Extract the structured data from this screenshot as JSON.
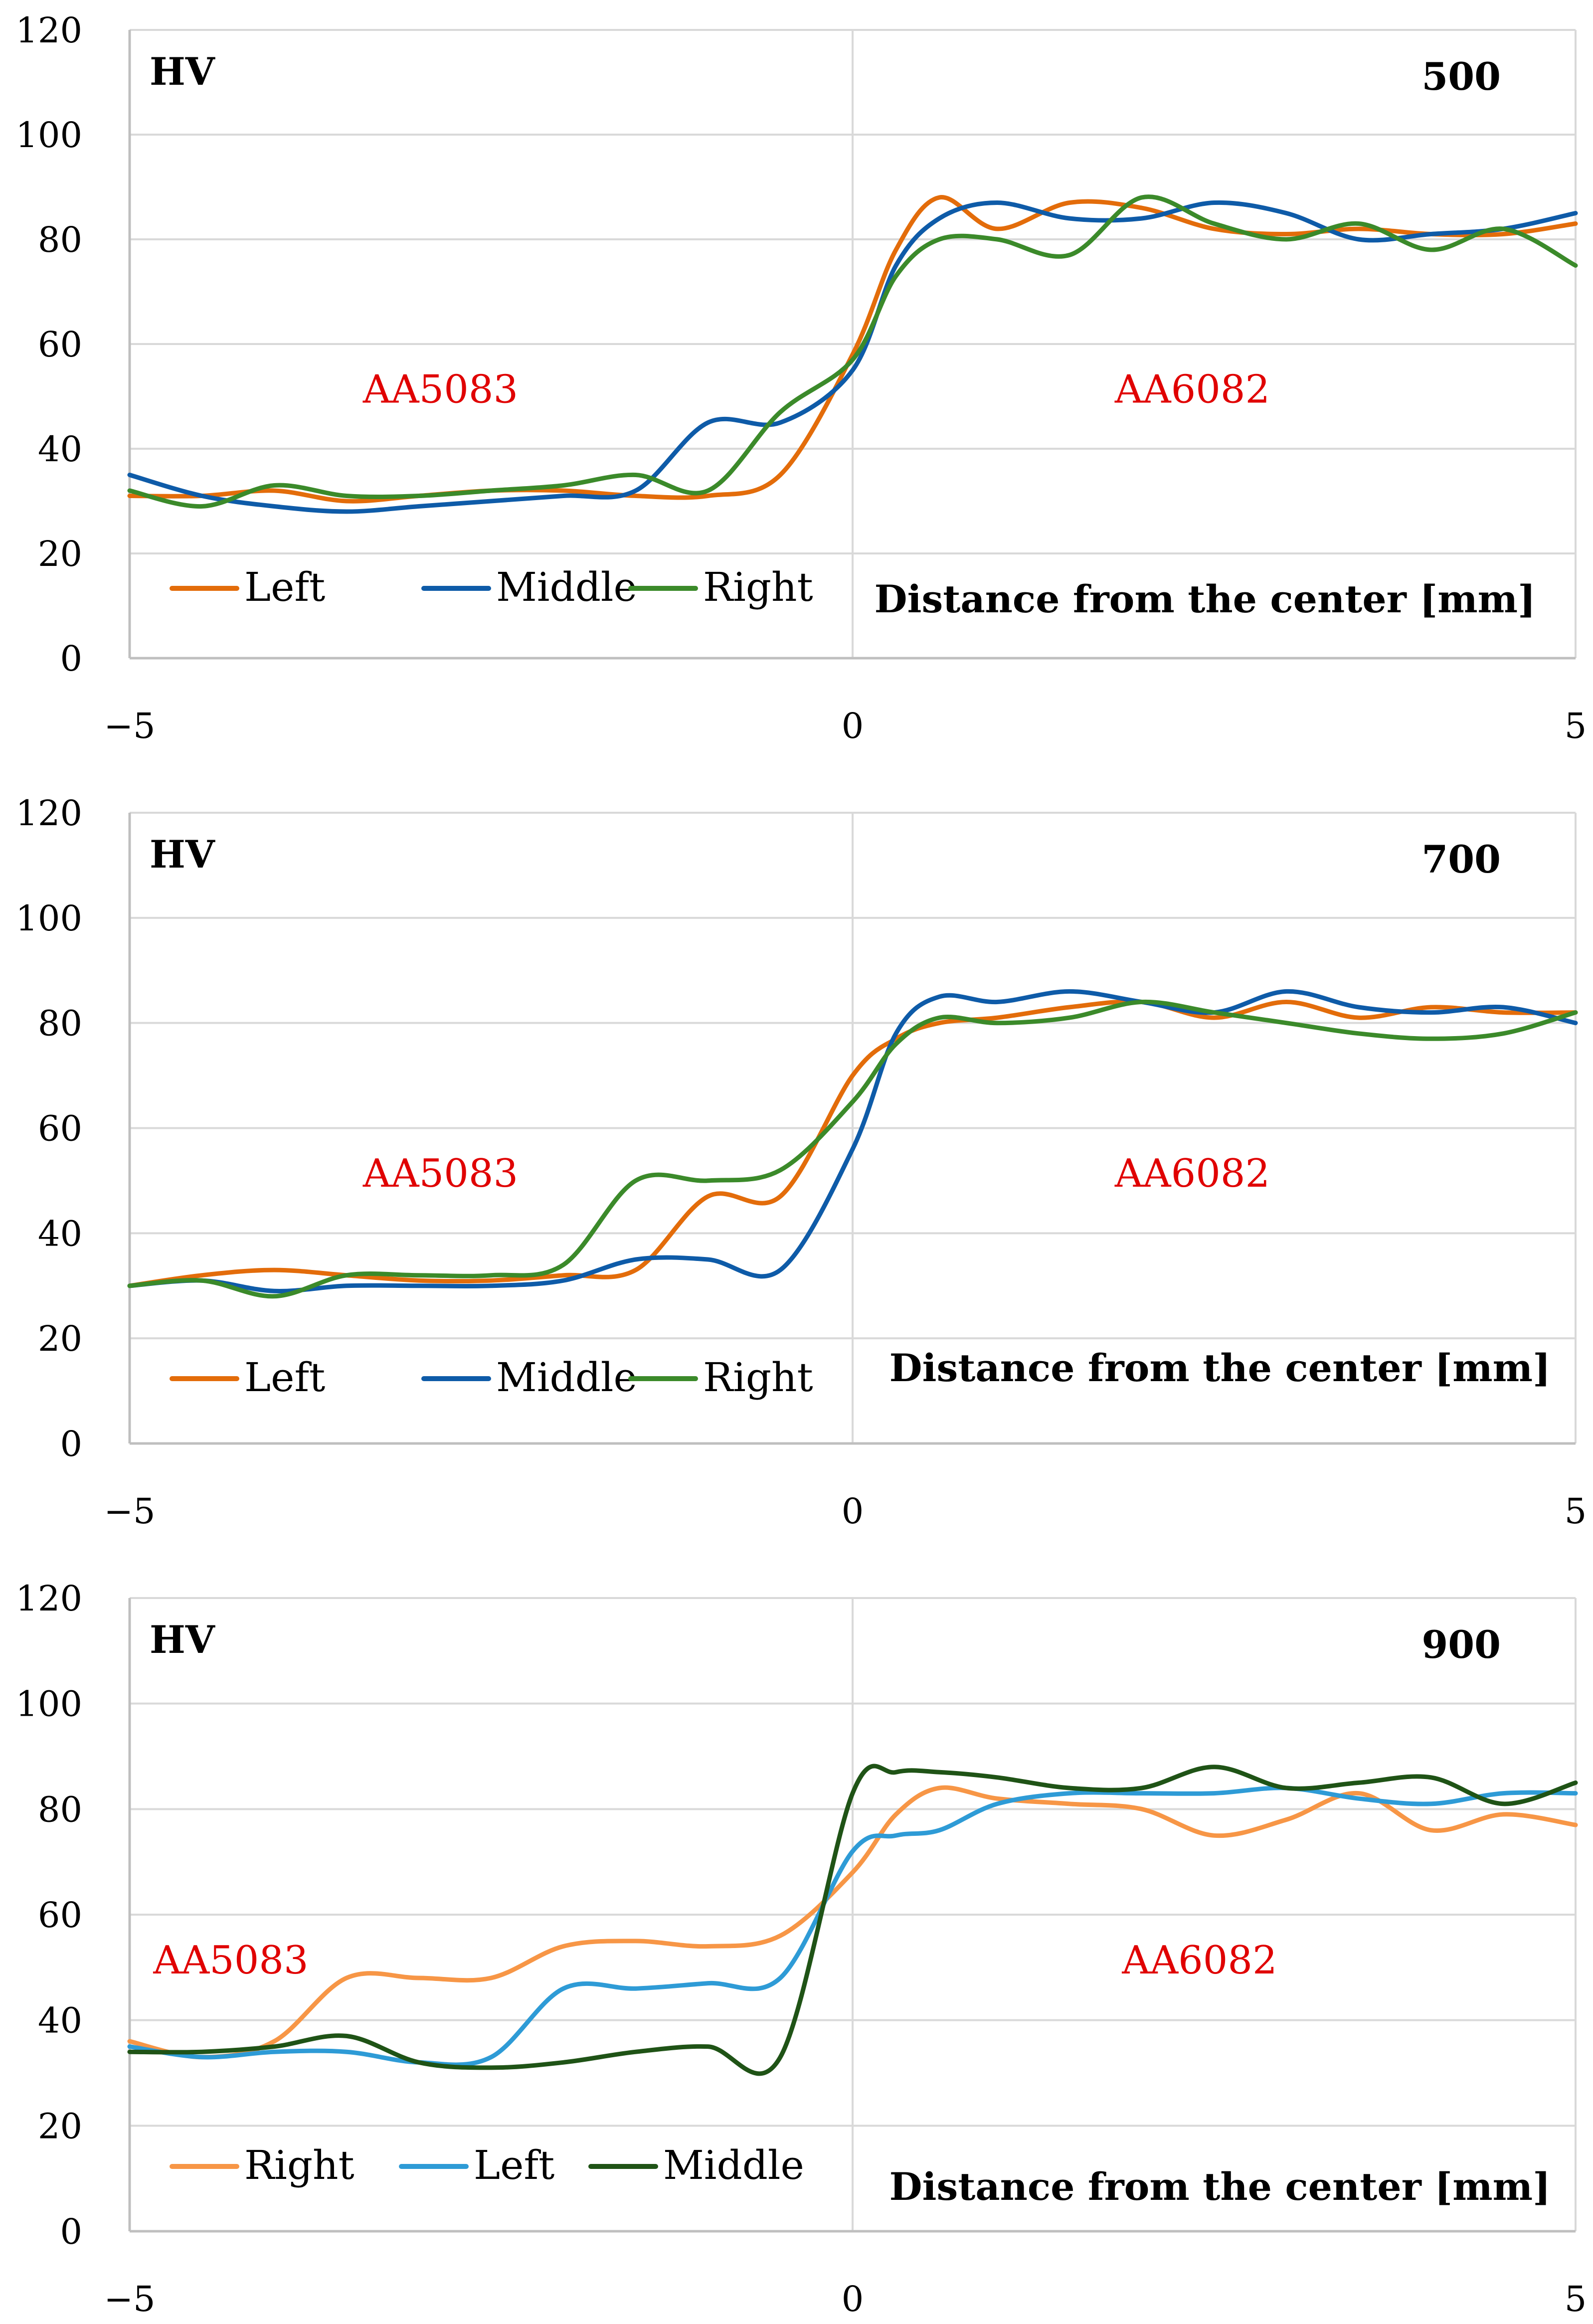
{
  "chart_data": [
    {
      "type": "line",
      "ylabel": "HV",
      "xlabel": "Distance from the center [mm]",
      "corner_value": "500",
      "xlim": [
        -5,
        5
      ],
      "ylim": [
        0,
        120
      ],
      "xticks": [
        "−5",
        "0",
        "5"
      ],
      "yticks": [
        "0",
        "20",
        "40",
        "60",
        "80",
        "100",
        "120"
      ],
      "grid": true,
      "legend_position": "bottom-left",
      "region_labels": [
        {
          "text": "AA5083",
          "x": -2.85,
          "y": 51.5
        },
        {
          "text": "AA6082",
          "x": 2.35,
          "y": 51.5
        }
      ],
      "series": [
        {
          "name": "Left",
          "color": "#e36c0a",
          "x": [
            -5,
            -4.5,
            -4,
            -3.5,
            -3,
            -2.5,
            -2,
            -1.5,
            -1,
            -0.5,
            0,
            0.3,
            0.6,
            1,
            1.5,
            2,
            2.5,
            3,
            3.5,
            4,
            4.5,
            5
          ],
          "values": [
            31,
            31,
            32,
            30,
            31,
            32,
            32,
            31,
            31,
            35,
            58,
            78,
            88,
            82,
            87,
            86,
            82,
            81,
            82,
            81,
            81,
            83
          ]
        },
        {
          "name": "Middle",
          "color": "#0e5ba8",
          "x": [
            -5,
            -4.5,
            -4,
            -3.5,
            -3,
            -2.5,
            -2,
            -1.5,
            -1,
            -0.5,
            0,
            0.3,
            0.6,
            1,
            1.5,
            2,
            2.5,
            3,
            3.5,
            4,
            4.5,
            5
          ],
          "values": [
            35,
            31,
            29,
            28,
            29,
            30,
            31,
            32,
            45,
            45,
            55,
            75,
            84,
            87,
            84,
            84,
            87,
            85,
            80,
            81,
            82,
            85
          ]
        },
        {
          "name": "Right",
          "color": "#3b8a2a",
          "x": [
            -5,
            -4.5,
            -4,
            -3.5,
            -3,
            -2.5,
            -2,
            -1.5,
            -1,
            -0.5,
            0,
            0.3,
            0.6,
            1,
            1.5,
            2,
            2.5,
            3,
            3.5,
            4,
            4.5,
            5
          ],
          "values": [
            32,
            29,
            33,
            31,
            31,
            32,
            33,
            35,
            32,
            47,
            57,
            73,
            80,
            80,
            77,
            88,
            83,
            80,
            83,
            78,
            82,
            75
          ]
        }
      ]
    },
    {
      "type": "line",
      "ylabel": "HV",
      "xlabel": "Distance from the center [mm]",
      "corner_value": "700",
      "xlim": [
        -5,
        5
      ],
      "ylim": [
        0,
        120
      ],
      "xticks": [
        "−5",
        "0",
        "5"
      ],
      "yticks": [
        "0",
        "20",
        "40",
        "60",
        "80",
        "100",
        "120"
      ],
      "grid": true,
      "legend_position": "bottom-left",
      "region_labels": [
        {
          "text": "AA5083",
          "x": -2.85,
          "y": 51.5
        },
        {
          "text": "AA6082",
          "x": 2.35,
          "y": 51.5
        }
      ],
      "series": [
        {
          "name": "Left",
          "color": "#e36c0a",
          "x": [
            -5,
            -4.5,
            -4,
            -3.5,
            -3,
            -2.5,
            -2,
            -1.5,
            -1,
            -0.5,
            0,
            0.3,
            0.6,
            1,
            1.5,
            2,
            2.5,
            3,
            3.5,
            4,
            4.5,
            5
          ],
          "values": [
            30,
            32,
            33,
            32,
            31,
            31,
            32,
            33,
            47,
            47,
            70,
            77,
            80,
            81,
            83,
            84,
            81,
            84,
            81,
            83,
            82,
            82
          ]
        },
        {
          "name": "Middle",
          "color": "#0e5ba8",
          "x": [
            -5,
            -4.5,
            -4,
            -3.5,
            -3,
            -2.5,
            -2,
            -1.5,
            -1,
            -0.5,
            0,
            0.3,
            0.6,
            1,
            1.5,
            2,
            2.5,
            3,
            3.5,
            4,
            4.5,
            5
          ],
          "values": [
            30,
            31,
            29,
            30,
            30,
            30,
            31,
            35,
            35,
            33,
            56,
            78,
            85,
            84,
            86,
            84,
            82,
            86,
            83,
            82,
            83,
            80
          ]
        },
        {
          "name": "Right",
          "color": "#3b8a2a",
          "x": [
            -5,
            -4.5,
            -4,
            -3.5,
            -3,
            -2.5,
            -2,
            -1.5,
            -1,
            -0.5,
            0,
            0.3,
            0.6,
            1,
            1.5,
            2,
            2.5,
            3,
            3.5,
            4,
            4.5,
            5
          ],
          "values": [
            30,
            31,
            28,
            32,
            32,
            32,
            34,
            50,
            50,
            52,
            65,
            76,
            81,
            80,
            81,
            84,
            82,
            80,
            78,
            77,
            78,
            82
          ]
        }
      ]
    },
    {
      "type": "line",
      "ylabel": "HV",
      "xlabel": "Distance from the center [mm]",
      "corner_value": "900",
      "xlim": [
        -5,
        5
      ],
      "ylim": [
        0,
        120
      ],
      "xticks": [
        "−5",
        "0",
        "5"
      ],
      "yticks": [
        "0",
        "20",
        "40",
        "60",
        "80",
        "100",
        "120"
      ],
      "grid": true,
      "legend_position": "bottom-left",
      "region_labels": [
        {
          "text": "AA5083",
          "x": -4.3,
          "y": 51.5
        },
        {
          "text": "AA6082",
          "x": 2.4,
          "y": 51.5
        }
      ],
      "series": [
        {
          "name": "Right",
          "color": "#f79646",
          "x": [
            -5,
            -4.5,
            -4,
            -3.5,
            -3,
            -2.5,
            -2,
            -1.5,
            -1,
            -0.5,
            0,
            0.3,
            0.6,
            1,
            1.5,
            2,
            2.5,
            3,
            3.5,
            4,
            4.5,
            5
          ],
          "values": [
            36,
            33,
            36,
            48,
            48,
            48,
            54,
            55,
            54,
            56,
            68,
            79,
            84,
            82,
            81,
            80,
            75,
            78,
            83,
            76,
            79,
            77
          ]
        },
        {
          "name": "Left",
          "color": "#2e9bd6",
          "x": [
            -5,
            -4.5,
            -4,
            -3.5,
            -3,
            -2.5,
            -2,
            -1.5,
            -1,
            -0.5,
            0,
            0.3,
            0.6,
            1,
            1.5,
            2,
            2.5,
            3,
            3.5,
            4,
            4.5,
            5
          ],
          "values": [
            35,
            33,
            34,
            34,
            32,
            33,
            46,
            46,
            47,
            48,
            72,
            75,
            76,
            81,
            83,
            83,
            83,
            84,
            82,
            81,
            83,
            83
          ]
        },
        {
          "name": "Middle",
          "color": "#1f5316",
          "x": [
            -5,
            -4.5,
            -4,
            -3.5,
            -3,
            -2.5,
            -2,
            -1.5,
            -1,
            -0.5,
            0,
            0.3,
            0.6,
            1,
            1.5,
            2,
            2.5,
            3,
            3.5,
            4,
            4.5,
            5
          ],
          "values": [
            34,
            34,
            35,
            37,
            32,
            31,
            32,
            34,
            35,
            33,
            83,
            87,
            87,
            86,
            84,
            84,
            88,
            84,
            85,
            86,
            81,
            85
          ]
        }
      ]
    }
  ]
}
